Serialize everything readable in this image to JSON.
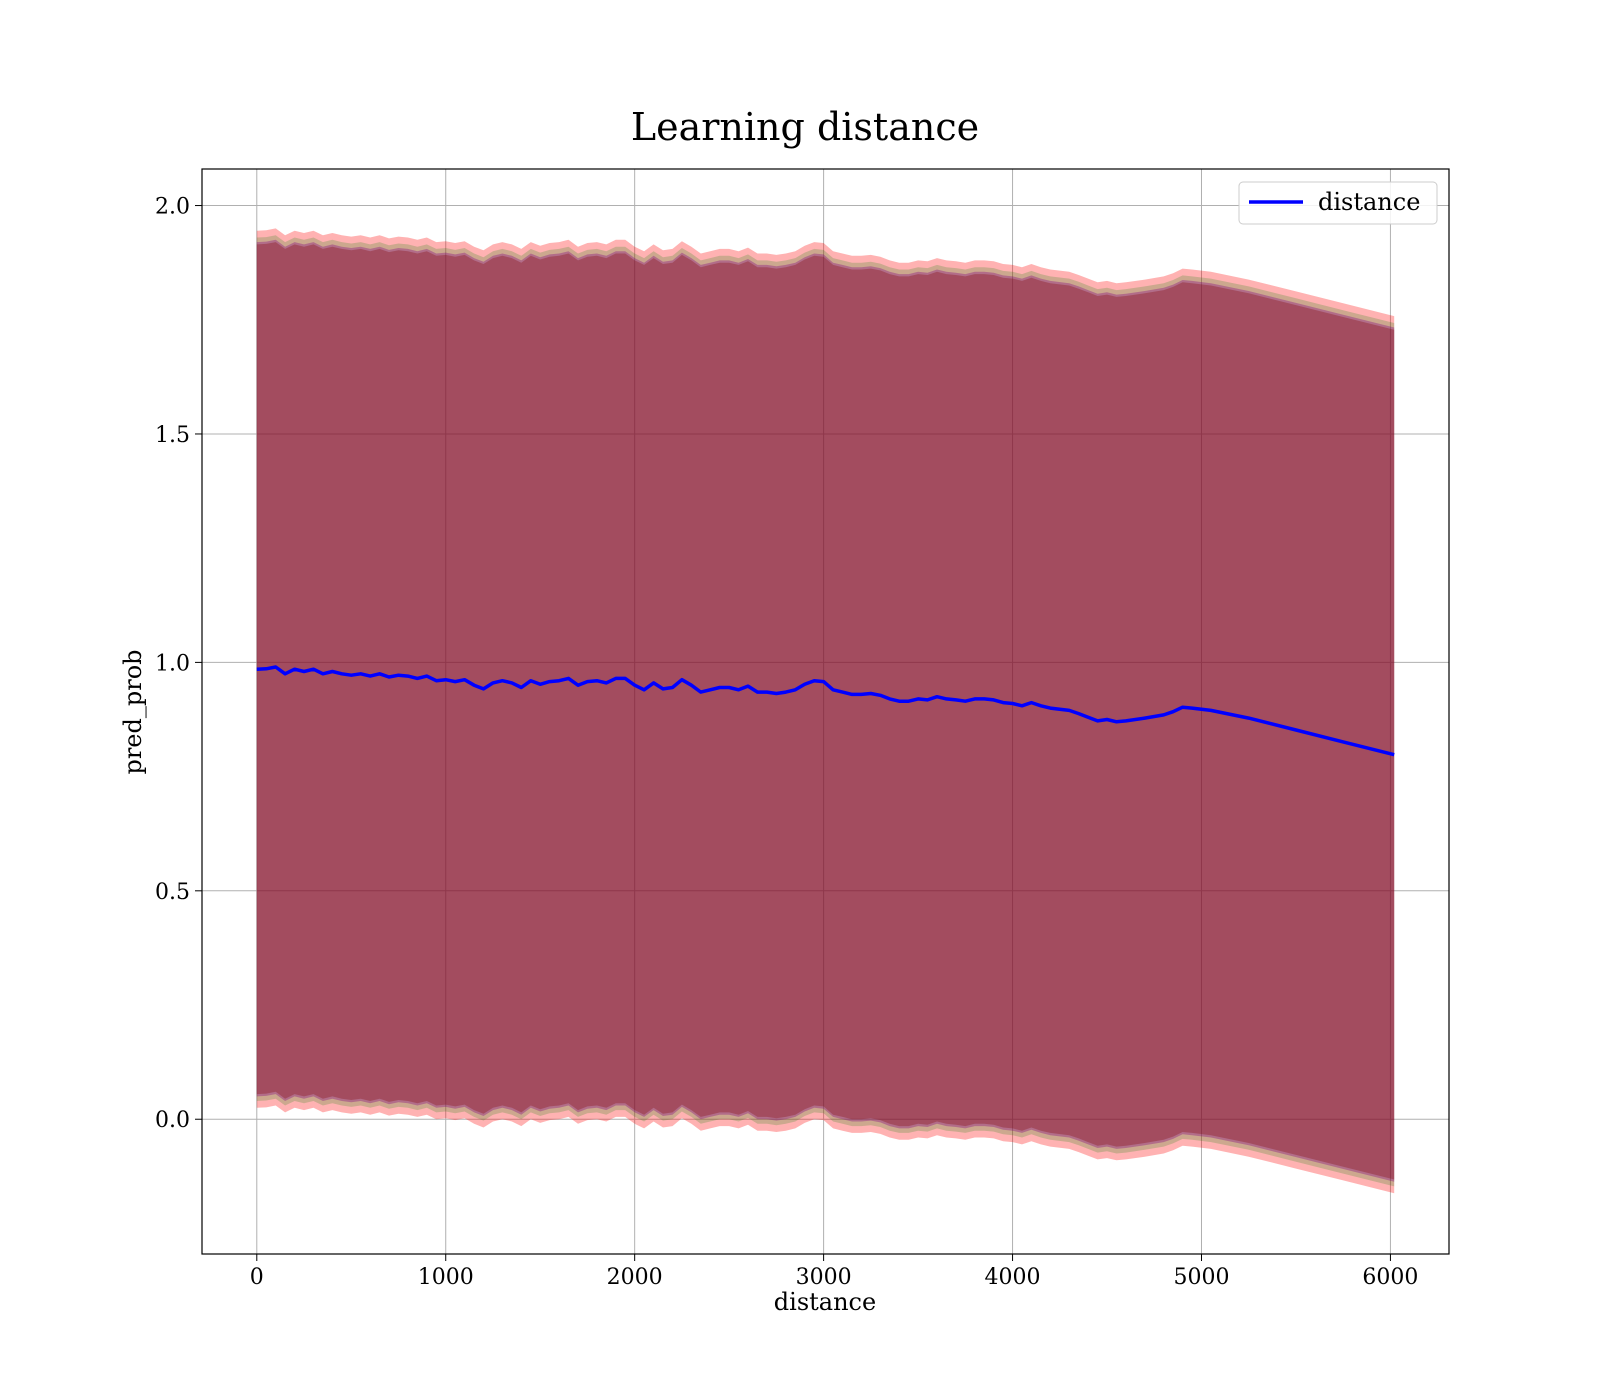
{
  "chart_data": {
    "type": "line",
    "title": "Learning distance",
    "xlabel": "distance",
    "ylabel": "pred_prob",
    "xlim": [
      -290,
      6310
    ],
    "ylim": [
      -0.295,
      2.08
    ],
    "xticks": [
      0,
      1000,
      2000,
      3000,
      4000,
      5000,
      6000
    ],
    "xtick_labels": [
      "0",
      "1000",
      "2000",
      "3000",
      "4000",
      "5000",
      "6000"
    ],
    "yticks": [
      0.0,
      0.5,
      1.0,
      1.5,
      2.0
    ],
    "ytick_labels": [
      "0.0",
      "0.5",
      "1.0",
      "1.5",
      "2.0"
    ],
    "grid": true,
    "legend_position": "top-right",
    "series": [
      {
        "name": "distance",
        "color": "#0000ff",
        "x": [
          0,
          50,
          100,
          150,
          200,
          250,
          300,
          350,
          400,
          450,
          500,
          550,
          600,
          650,
          700,
          750,
          800,
          850,
          900,
          950,
          1000,
          1050,
          1100,
          1150,
          1200,
          1250,
          1300,
          1350,
          1400,
          1450,
          1500,
          1550,
          1600,
          1650,
          1700,
          1750,
          1800,
          1850,
          1900,
          1950,
          2000,
          2050,
          2100,
          2150,
          2200,
          2250,
          2300,
          2350,
          2400,
          2450,
          2500,
          2550,
          2600,
          2650,
          2700,
          2750,
          2800,
          2850,
          2900,
          2950,
          3000,
          3050,
          3100,
          3150,
          3200,
          3250,
          3300,
          3350,
          3400,
          3450,
          3500,
          3550,
          3600,
          3650,
          3700,
          3750,
          3800,
          3850,
          3900,
          3950,
          4000,
          4050,
          4100,
          4150,
          4200,
          4300,
          4350,
          4400,
          4450,
          4500,
          4550,
          4600,
          4700,
          4800,
          4850,
          4900,
          4950,
          5050,
          5250,
          5500,
          5750,
          6020
        ],
        "y": [
          0.985,
          0.986,
          0.99,
          0.975,
          0.985,
          0.98,
          0.985,
          0.975,
          0.98,
          0.975,
          0.972,
          0.975,
          0.97,
          0.975,
          0.968,
          0.972,
          0.97,
          0.965,
          0.97,
          0.96,
          0.962,
          0.958,
          0.962,
          0.95,
          0.942,
          0.955,
          0.96,
          0.955,
          0.945,
          0.96,
          0.952,
          0.958,
          0.96,
          0.965,
          0.95,
          0.958,
          0.96,
          0.955,
          0.965,
          0.965,
          0.95,
          0.94,
          0.955,
          0.942,
          0.945,
          0.962,
          0.95,
          0.935,
          0.94,
          0.945,
          0.945,
          0.94,
          0.948,
          0.935,
          0.935,
          0.932,
          0.935,
          0.94,
          0.952,
          0.96,
          0.958,
          0.94,
          0.935,
          0.93,
          0.93,
          0.932,
          0.928,
          0.92,
          0.915,
          0.915,
          0.92,
          0.918,
          0.925,
          0.92,
          0.918,
          0.915,
          0.92,
          0.92,
          0.918,
          0.912,
          0.91,
          0.905,
          0.912,
          0.905,
          0.9,
          0.895,
          0.888,
          0.88,
          0.872,
          0.875,
          0.87,
          0.872,
          0.878,
          0.885,
          0.892,
          0.902,
          0.9,
          0.895,
          0.878,
          0.852,
          0.826,
          0.798
        ]
      }
    ],
    "bands": [
      {
        "fill": "#ff0000",
        "opacity": 0.3,
        "half_width": 0.96
      },
      {
        "fill": "#008000",
        "opacity": 0.2,
        "half_width": 0.945
      },
      {
        "fill": "#800080",
        "opacity": 0.35,
        "half_width": 0.935
      },
      {
        "fill": "#800000",
        "opacity": 0.3,
        "half_width": 0.93
      }
    ]
  }
}
